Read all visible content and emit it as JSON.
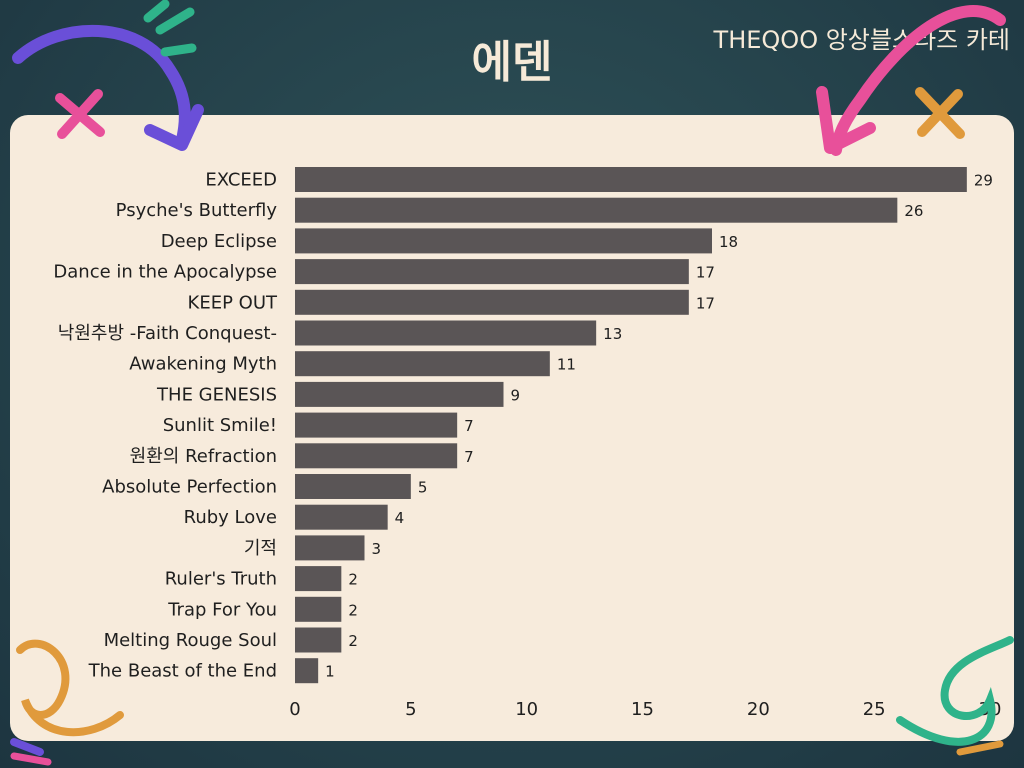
{
  "header": {
    "title": "에덴",
    "brand": "THEQOO 앙상블스타즈 카테"
  },
  "colors": {
    "bar": "#5a5556",
    "panel": "#f7ebdc",
    "background": "#24414a"
  },
  "chart_data": {
    "type": "bar",
    "orientation": "horizontal",
    "categories": [
      "EXCEED",
      "Psyche's Butterfly",
      "Deep Eclipse",
      "Dance in the Apocalypse",
      "KEEP OUT",
      "낙원추방 -Faith Conquest-",
      "Awakening Myth",
      "THE GENESIS",
      "Sunlit Smile!",
      "원환의 Refraction",
      "Absolute Perfection",
      "Ruby Love",
      "기적",
      "Ruler's Truth",
      "Trap For You",
      "Melting Rouge Soul",
      "The Beast of the End"
    ],
    "values": [
      29,
      26,
      18,
      17,
      17,
      13,
      11,
      9,
      7,
      7,
      5,
      4,
      3,
      2,
      2,
      2,
      1
    ],
    "xlim": [
      0,
      30
    ],
    "xticks": [
      0,
      5,
      10,
      15,
      20,
      25,
      30
    ],
    "grid": false,
    "legend": "none"
  }
}
